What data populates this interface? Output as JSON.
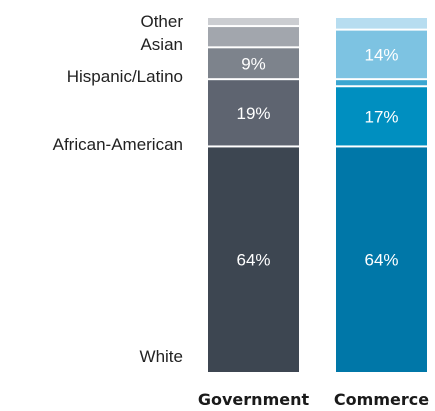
{
  "chart_data": {
    "type": "bar",
    "stacked": true,
    "normalized": true,
    "categories": [
      "Government",
      "Commerce"
    ],
    "series": [
      {
        "name": "White",
        "values": [
          64,
          64
        ]
      },
      {
        "name": "African-American",
        "values": [
          19,
          17
        ]
      },
      {
        "name": "Hispanic/Latino",
        "values": [
          9,
          2
        ]
      },
      {
        "name": "Asian",
        "values": [
          6,
          14
        ]
      },
      {
        "name": "Other",
        "values": [
          2,
          3
        ]
      }
    ],
    "data_labels": [
      [
        "64%",
        "19%",
        "9%",
        "",
        ""
      ],
      [
        "64%",
        "17%",
        "",
        "14%",
        ""
      ]
    ],
    "colors": {
      "Government": [
        "#3d4651",
        "#5e6470",
        "#7d838c",
        "#a2a6ad",
        "#cbcdd1"
      ],
      "Commerce": [
        "#0077a8",
        "#008fc0",
        "#3aa6d1",
        "#7dc3e2",
        "#b7ddf0"
      ]
    },
    "legend_position": "left",
    "title": "",
    "xlabel": "",
    "ylabel": "",
    "grid": false
  }
}
